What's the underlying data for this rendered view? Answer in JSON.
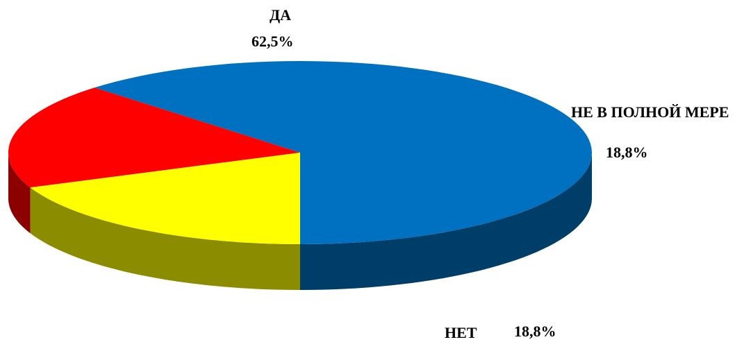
{
  "chart_data": {
    "type": "pie",
    "categories": [
      "ДА",
      "НЕТ",
      "НЕ В ПОЛНОЙ МЕРЕ"
    ],
    "values": [
      62.5,
      18.8,
      18.8
    ],
    "value_labels": [
      "62,5%",
      "18,8%",
      "18,8%"
    ],
    "colors": [
      "#0070c0",
      "#ff0000",
      "#ffff00"
    ]
  }
}
